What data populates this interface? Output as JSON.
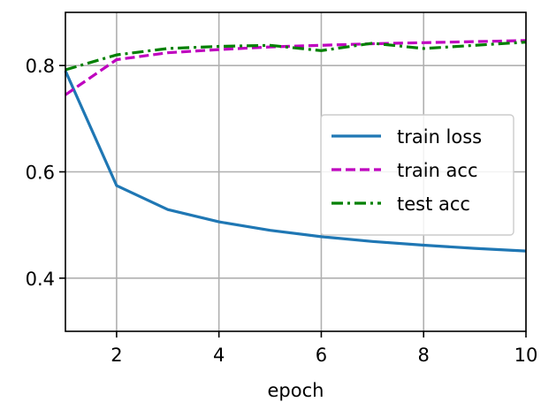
{
  "chart_data": {
    "type": "line",
    "xlabel": "epoch",
    "ylabel": "",
    "xlim": [
      1,
      10
    ],
    "ylim": [
      0.3,
      0.9
    ],
    "xticks": [
      2,
      4,
      6,
      8,
      10
    ],
    "yticks": [
      0.4,
      0.6,
      0.8
    ],
    "xtick_labels": [
      "2",
      "4",
      "6",
      "8",
      "10"
    ],
    "ytick_labels": [
      "0.4",
      "0.6",
      "0.8"
    ],
    "grid": true,
    "legend_position": "center-right",
    "x": [
      1,
      2,
      3,
      4,
      5,
      6,
      7,
      8,
      9,
      10
    ],
    "series": [
      {
        "name": "train loss",
        "color": "#1f77b4",
        "style": "solid",
        "values": [
          0.79,
          0.574,
          0.529,
          0.506,
          0.49,
          0.478,
          0.469,
          0.462,
          0.456,
          0.451
        ]
      },
      {
        "name": "train acc",
        "color": "#bf00bf",
        "style": "dashed",
        "values": [
          0.745,
          0.811,
          0.824,
          0.83,
          0.835,
          0.838,
          0.841,
          0.843,
          0.845,
          0.847
        ]
      },
      {
        "name": "test acc",
        "color": "#008000",
        "style": "dashdot",
        "values": [
          0.792,
          0.82,
          0.832,
          0.836,
          0.838,
          0.828,
          0.842,
          0.832,
          0.838,
          0.844
        ]
      }
    ]
  }
}
